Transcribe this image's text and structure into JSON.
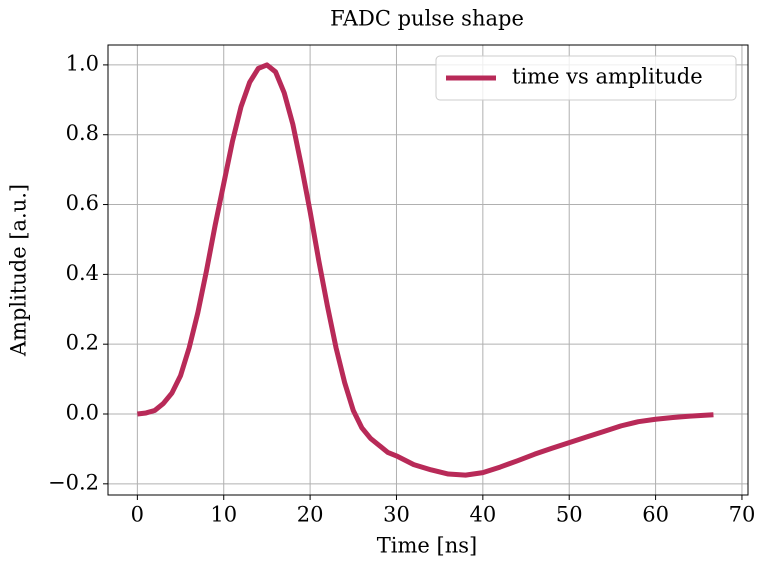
{
  "chart_data": {
    "type": "line",
    "title": "FADC pulse shape",
    "xlabel": "Time [ns]",
    "ylabel": "Amplitude [a.u.]",
    "x": [
      0,
      1,
      2,
      3,
      4,
      5,
      6,
      7,
      8,
      9,
      10,
      11,
      12,
      13,
      14,
      15,
      16,
      17,
      18,
      19,
      20,
      21,
      22,
      23,
      24,
      25,
      26,
      27,
      28,
      29,
      30,
      32,
      34,
      36,
      38,
      40,
      42,
      44,
      46,
      48,
      50,
      52,
      54,
      56,
      58,
      60,
      62,
      64,
      66.7
    ],
    "series": [
      {
        "name": "time vs amplitude",
        "color": "#b82a58",
        "values": [
          0,
          0.003,
          0.01,
          0.03,
          0.06,
          0.11,
          0.19,
          0.29,
          0.41,
          0.54,
          0.66,
          0.78,
          0.88,
          0.95,
          0.99,
          1.0,
          0.98,
          0.92,
          0.83,
          0.71,
          0.58,
          0.44,
          0.31,
          0.19,
          0.09,
          0.01,
          -0.04,
          -0.07,
          -0.09,
          -0.11,
          -0.12,
          -0.145,
          -0.16,
          -0.172,
          -0.175,
          -0.168,
          -0.152,
          -0.134,
          -0.115,
          -0.098,
          -0.082,
          -0.066,
          -0.05,
          -0.034,
          -0.022,
          -0.015,
          -0.01,
          -0.006,
          -0.002
        ]
      }
    ],
    "xlim": [
      -3.4,
      70.7
    ],
    "xticks": [
      0,
      10,
      20,
      30,
      40,
      50,
      60,
      70
    ],
    "ylim": [
      -0.232,
      1.057
    ],
    "yticks": [
      {
        "value": -0.2,
        "label": "−0.2"
      },
      {
        "value": 0,
        "label": "0.0"
      },
      {
        "value": 0.2,
        "label": "0.2"
      },
      {
        "value": 0.4,
        "label": "0.4"
      },
      {
        "value": 0.6,
        "label": "0.6"
      },
      {
        "value": 0.8,
        "label": "0.8"
      },
      {
        "value": 1.0,
        "label": "1.0"
      }
    ],
    "grid": true,
    "legend": "upper right"
  }
}
